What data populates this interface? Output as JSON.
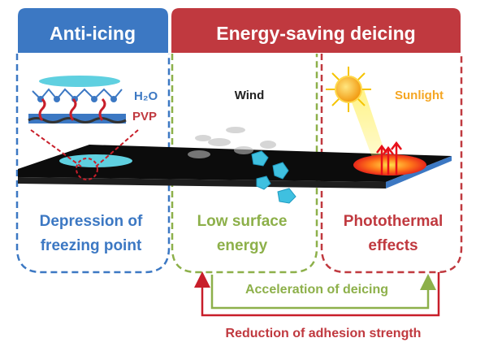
{
  "headers": {
    "anti_icing": "Anti-icing",
    "deicing": "Energy-saving deicing"
  },
  "panels": {
    "anti_icing": {
      "line1": "Depression of",
      "line2": "freezing point",
      "h2o_label": "H₂O",
      "pvp_label": "PVP"
    },
    "wind": {
      "label": "Wind",
      "line1": "Low surface",
      "line2": "energy"
    },
    "sunlight": {
      "label": "Sunlight",
      "line1": "Photothermal",
      "line2": "effects"
    }
  },
  "arrows": {
    "acceleration": "Acceleration of deicing",
    "reduction": "Reduction of adhesion strength"
  },
  "colors": {
    "blue": "#3c78c3",
    "red": "#c0393f",
    "green": "#8db04a",
    "orange": "#f5a623",
    "ice": "#3fc0e0"
  }
}
